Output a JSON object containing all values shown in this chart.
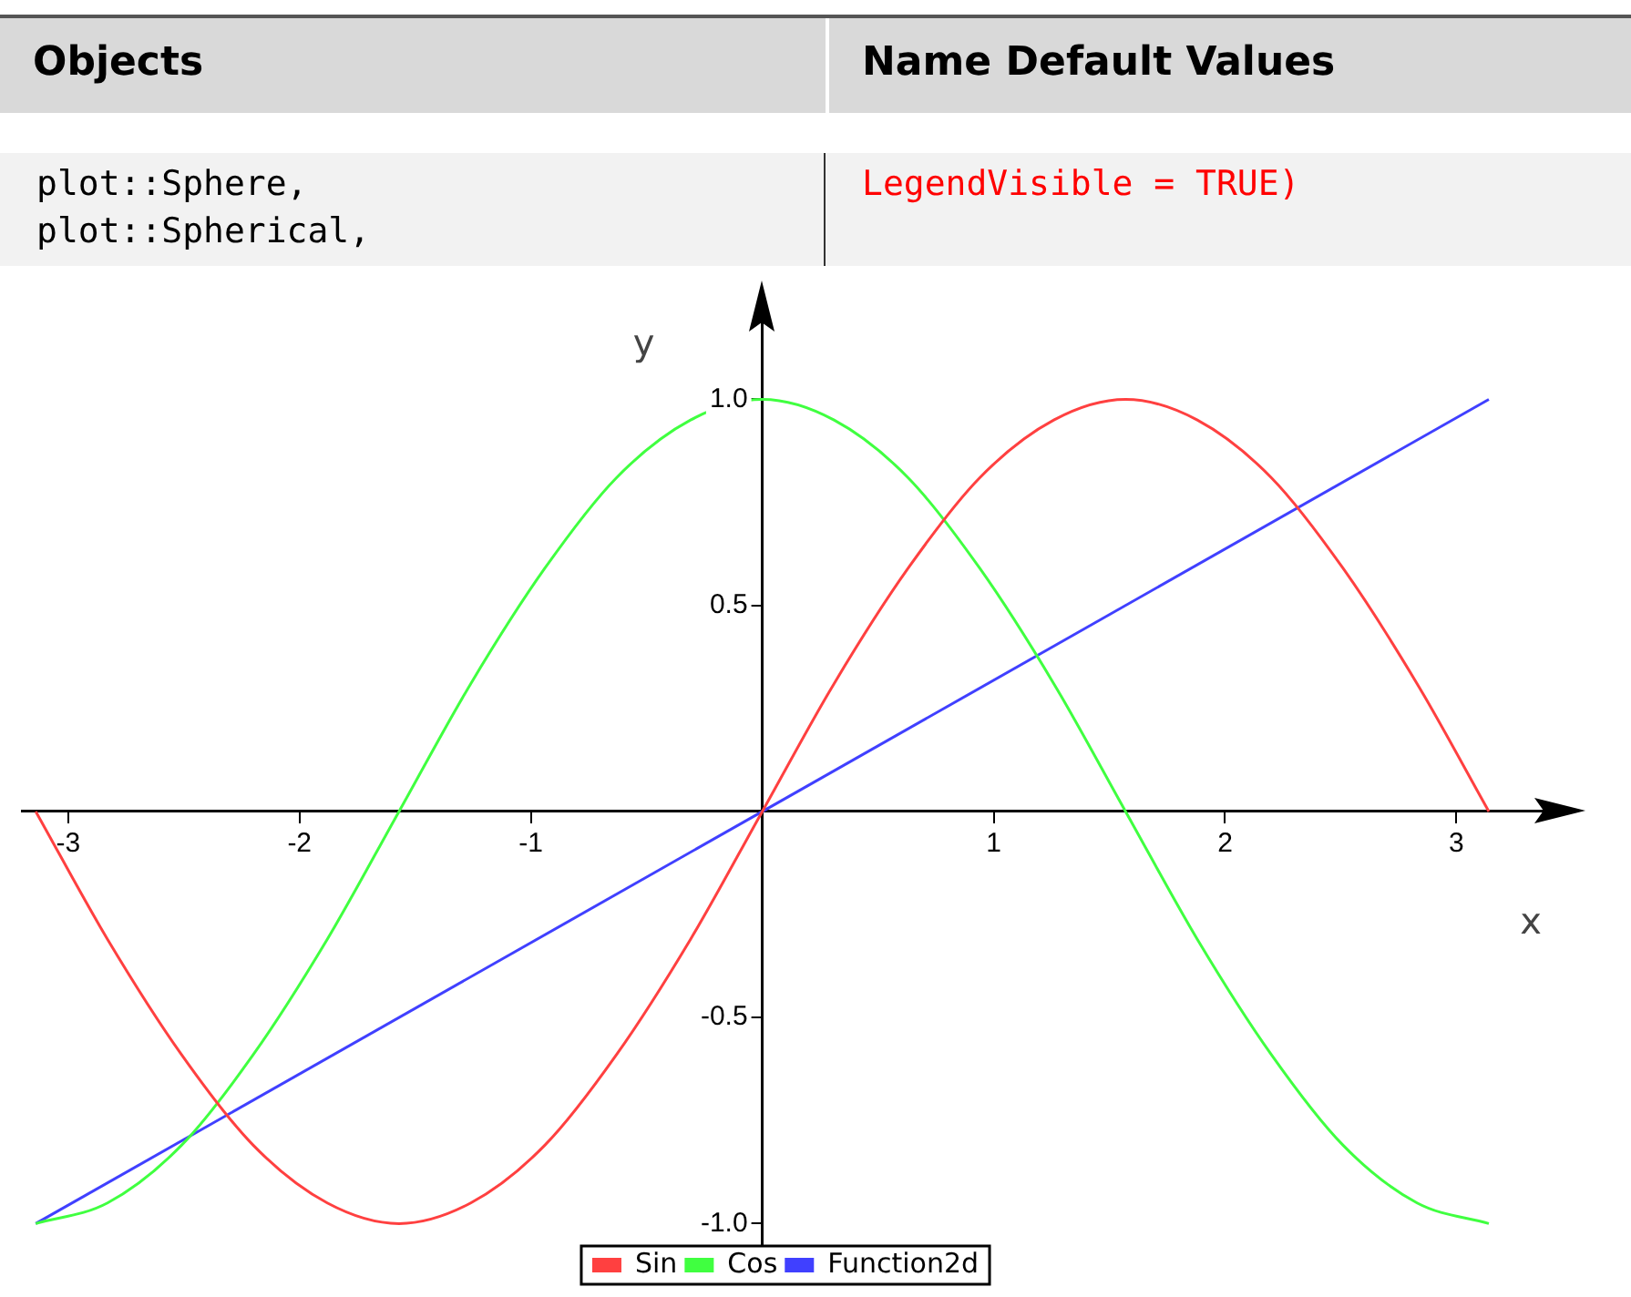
{
  "chart_data": {
    "type": "line",
    "xlabel": "x",
    "ylabel": "y",
    "annotations": [
      "Objects",
      "Name Default Values",
      "plot::Sphere,",
      "plot::Spherical,",
      "LegendVisible = TRUE)"
    ],
    "x": [
      -3.14,
      -2.83,
      -2.51,
      -2.2,
      -1.88,
      -1.57,
      -1.26,
      -0.94,
      -0.63,
      -0.31,
      0,
      0.31,
      0.63,
      0.94,
      1.26,
      1.57,
      1.88,
      2.2,
      2.51,
      2.83,
      3.14
    ],
    "series": [
      {
        "name": "Sin",
        "color": "#ff4040",
        "values": [
          0,
          -0.31,
          -0.59,
          -0.81,
          -0.95,
          -1,
          -0.95,
          -0.81,
          -0.59,
          -0.31,
          0,
          0.31,
          0.59,
          0.81,
          0.95,
          1,
          0.95,
          0.81,
          0.59,
          0.31,
          0
        ]
      },
      {
        "name": "Cos",
        "color": "#40ff40",
        "values": [
          -1,
          -0.95,
          -0.81,
          -0.59,
          -0.31,
          0,
          0.31,
          0.59,
          0.81,
          0.95,
          1,
          0.95,
          0.81,
          0.59,
          0.31,
          0,
          -0.31,
          -0.59,
          -0.81,
          -0.95,
          -1
        ]
      },
      {
        "name": "Function2d",
        "color": "#4040ff",
        "x": [
          -3.14,
          3.14
        ],
        "values": [
          -1,
          1
        ]
      }
    ],
    "xlim": [
      -3.2,
      3.4
    ],
    "ylim": [
      -1.05,
      1.2
    ],
    "xticks": [
      -3,
      -2,
      -1,
      1,
      2,
      3
    ],
    "yticks": [
      {
        "value": -1,
        "label": "-1.0"
      },
      -0.5,
      0.5,
      {
        "value": 1,
        "label": "1.0"
      }
    ],
    "grid": false,
    "legend": "bottom",
    "marker": "none",
    "line_style": "solid"
  }
}
